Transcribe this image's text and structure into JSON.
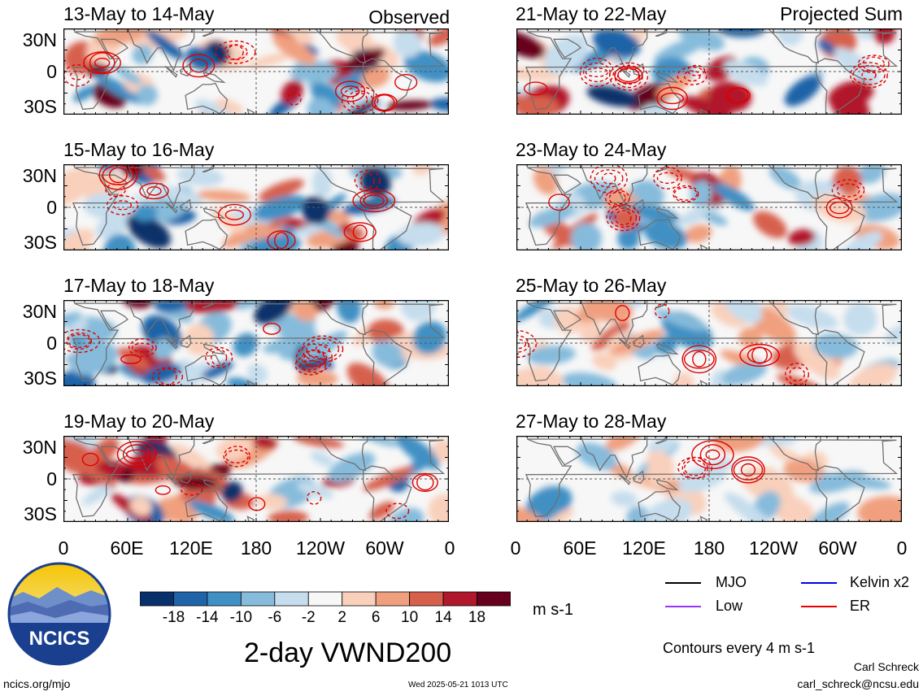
{
  "chart_data": [
    {
      "type": "heatmap",
      "title": "13-May to 14-May",
      "subtitle": "Observed",
      "seed": 13,
      "contours": 9
    },
    {
      "type": "heatmap",
      "title": "21-May to 22-May",
      "subtitle": "Projected Sum",
      "seed": 21,
      "contours": 10
    },
    {
      "type": "heatmap",
      "title": "15-May to 16-May",
      "subtitle": "",
      "seed": 15,
      "contours": 9
    },
    {
      "type": "heatmap",
      "title": "23-May to 24-May",
      "subtitle": "",
      "seed": 23,
      "contours": 8
    },
    {
      "type": "heatmap",
      "title": "17-May to 18-May",
      "subtitle": "",
      "seed": 17,
      "contours": 9
    },
    {
      "type": "heatmap",
      "title": "25-May to 26-May",
      "subtitle": "",
      "seed": 25,
      "contours": 6
    },
    {
      "type": "heatmap",
      "title": "19-May to 20-May",
      "subtitle": "",
      "seed": 19,
      "contours": 9
    },
    {
      "type": "heatmap",
      "title": "27-May to 28-May",
      "subtitle": "",
      "seed": 27,
      "contours": 3
    }
  ],
  "axes": {
    "lat_labels": [
      "30N",
      "0",
      "30S"
    ],
    "lon_labels": [
      "0",
      "60E",
      "120E",
      "180",
      "120W",
      "60W",
      "0"
    ]
  },
  "colorbar": {
    "colors": [
      "#08306b",
      "#1f63a8",
      "#4190c4",
      "#86bbdb",
      "#c5dded",
      "#f7f7f7",
      "#f9d0bb",
      "#f0a07f",
      "#d7604d",
      "#b2182b",
      "#67001f"
    ],
    "ticks": [
      "-18",
      "-14",
      "-10",
      "-6",
      "-2",
      "2",
      "6",
      "10",
      "14",
      "18"
    ],
    "units": "m s-1"
  },
  "main_title": "2-day VWND200",
  "legend": {
    "items": [
      {
        "label": "MJO",
        "color": "#000000"
      },
      {
        "label": "Kelvin x2",
        "color": "#0000ee"
      },
      {
        "label": "Low",
        "color": "#9933ff"
      },
      {
        "label": "ER",
        "color": "#ee0000"
      }
    ],
    "note": "Contours every 4 m s-1"
  },
  "logo": {
    "text": "NCICS"
  },
  "footer": {
    "url": "ncics.org/mjo",
    "timestamp": "Wed 2025-05-21 1013 UTC",
    "author": "Carl Schreck",
    "email": "carl_schreck@ncsu.edu"
  }
}
